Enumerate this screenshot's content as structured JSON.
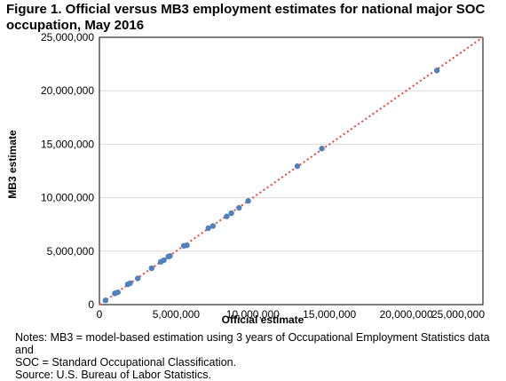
{
  "title": "Figure 1. Official versus MB3 employment estimates for national major SOC occupation, May 2016",
  "notes": {
    "line1": "Notes: MB3 = model-based estimation using 3 years of Occupational Employment Statistics data and",
    "line2": "SOC = Standard Occupational Classification.",
    "source": "Source: U.S. Bureau of Labor Statistics."
  },
  "colors": {
    "points": "#4f81bd",
    "reference_line": "#e8443a",
    "grid": "#d9d9d9",
    "frame": "#000000"
  },
  "chart_data": {
    "type": "scatter",
    "title": "Figure 1. Official versus MB3 employment estimates for national major SOC occupation, May 2016",
    "xlabel": "Official estimate",
    "ylabel": "MB3 estimate",
    "xlim": [
      0,
      25000000
    ],
    "ylim": [
      0,
      25000000
    ],
    "x_ticks": [
      "0",
      "5,000,000",
      "10,000,000",
      "15,000,000",
      "20,000,000",
      "25,000,000"
    ],
    "y_ticks": [
      "0",
      "5,000,000",
      "10,000,000",
      "15,000,000",
      "20,000,000",
      "25,000,000"
    ],
    "grid": "horizontal",
    "reference_line": {
      "style": "dotted",
      "from": [
        0,
        0
      ],
      "to": [
        25000000,
        25000000
      ]
    },
    "points": [
      [
        400000,
        400000
      ],
      [
        1000000,
        1050000
      ],
      [
        1200000,
        1150000
      ],
      [
        1850000,
        1900000
      ],
      [
        2000000,
        2000000
      ],
      [
        2500000,
        2450000
      ],
      [
        3400000,
        3400000
      ],
      [
        4000000,
        4000000
      ],
      [
        4200000,
        4150000
      ],
      [
        4500000,
        4500000
      ],
      [
        4600000,
        4550000
      ],
      [
        5500000,
        5500000
      ],
      [
        5700000,
        5550000
      ],
      [
        7100000,
        7150000
      ],
      [
        7400000,
        7350000
      ],
      [
        8300000,
        8250000
      ],
      [
        8600000,
        8550000
      ],
      [
        9100000,
        9050000
      ],
      [
        9700000,
        9700000
      ],
      [
        12900000,
        12950000
      ],
      [
        14500000,
        14600000
      ],
      [
        22000000,
        21900000
      ]
    ]
  }
}
